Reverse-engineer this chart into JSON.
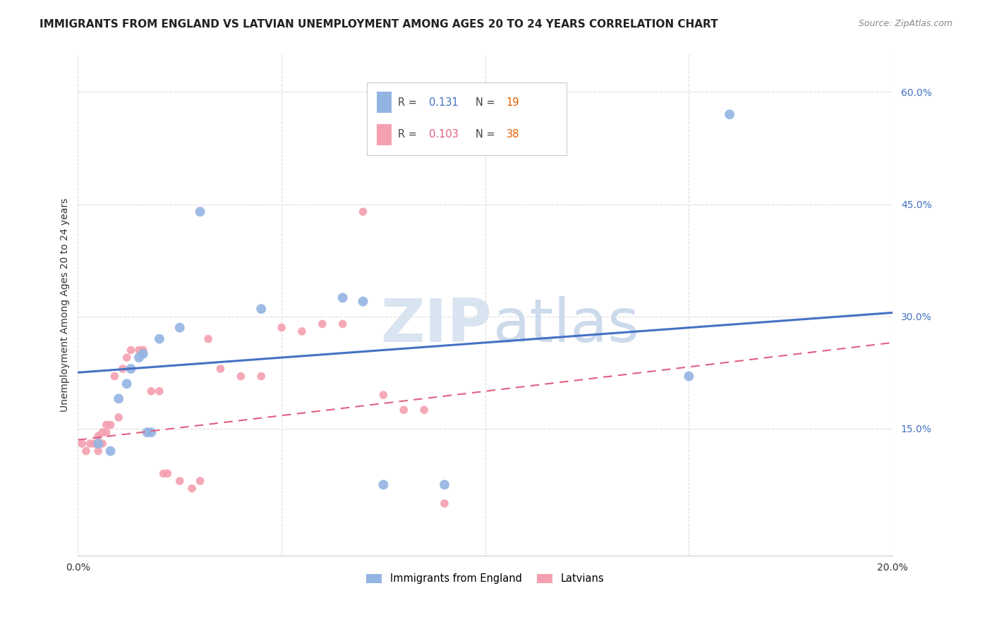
{
  "title": "IMMIGRANTS FROM ENGLAND VS LATVIAN UNEMPLOYMENT AMONG AGES 20 TO 24 YEARS CORRELATION CHART",
  "source": "Source: ZipAtlas.com",
  "ylabel": "Unemployment Among Ages 20 to 24 years",
  "x_ticks": [
    0.0,
    0.05,
    0.1,
    0.15,
    0.2
  ],
  "y_ticks_right": [
    0.15,
    0.3,
    0.45,
    0.6
  ],
  "y_tick_labels_right": [
    "15.0%",
    "30.0%",
    "45.0%",
    "60.0%"
  ],
  "xlim": [
    0.0,
    0.2
  ],
  "ylim": [
    -0.02,
    0.65
  ],
  "legend1_label": "Immigrants from England",
  "legend2_label": "Latvians",
  "r1": "0.131",
  "n1": "19",
  "r2": "0.103",
  "n2": "38",
  "blue_color": "#92b4e3",
  "pink_color": "#f4a0b0",
  "blue_line_color": "#4472c4",
  "pink_line_color": "#e06080",
  "blue_points_x": [
    0.005,
    0.008,
    0.01,
    0.012,
    0.013,
    0.015,
    0.016,
    0.017,
    0.018,
    0.02,
    0.025,
    0.03,
    0.045,
    0.065,
    0.07,
    0.075,
    0.09,
    0.15,
    0.16
  ],
  "blue_points_y": [
    0.13,
    0.12,
    0.19,
    0.21,
    0.23,
    0.245,
    0.25,
    0.145,
    0.145,
    0.27,
    0.285,
    0.44,
    0.31,
    0.325,
    0.32,
    0.075,
    0.075,
    0.22,
    0.57
  ],
  "pink_points_x": [
    0.001,
    0.002,
    0.003,
    0.004,
    0.005,
    0.005,
    0.006,
    0.006,
    0.007,
    0.007,
    0.008,
    0.009,
    0.01,
    0.011,
    0.012,
    0.013,
    0.015,
    0.016,
    0.018,
    0.02,
    0.021,
    0.022,
    0.025,
    0.028,
    0.03,
    0.032,
    0.035,
    0.04,
    0.045,
    0.05,
    0.055,
    0.06,
    0.065,
    0.07,
    0.075,
    0.08,
    0.085,
    0.09
  ],
  "pink_points_y": [
    0.13,
    0.12,
    0.13,
    0.13,
    0.12,
    0.14,
    0.13,
    0.145,
    0.145,
    0.155,
    0.155,
    0.22,
    0.165,
    0.23,
    0.245,
    0.255,
    0.255,
    0.255,
    0.2,
    0.2,
    0.09,
    0.09,
    0.08,
    0.07,
    0.08,
    0.27,
    0.23,
    0.22,
    0.22,
    0.285,
    0.28,
    0.29,
    0.29,
    0.44,
    0.195,
    0.175,
    0.175,
    0.05
  ],
  "marker_size_blue": 100,
  "marker_size_pink": 70,
  "blue_trendline_x": [
    0.0,
    0.2
  ],
  "blue_trendline_y": [
    0.225,
    0.305
  ],
  "pink_trendline_x": [
    0.0,
    0.2
  ],
  "pink_trendline_y": [
    0.135,
    0.265
  ],
  "background_color": "#ffffff",
  "grid_color": "#dddddd",
  "n_color": "#e06000",
  "r_value_blue_color": "#4472c4",
  "r_value_pink_color": "#e06080"
}
